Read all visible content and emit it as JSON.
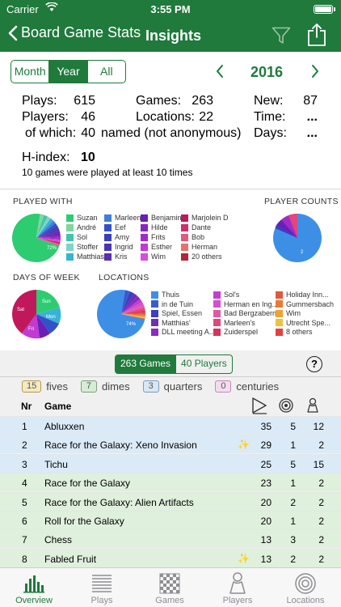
{
  "status": {
    "carrier": "Carrier",
    "time": "3:55 PM"
  },
  "nav": {
    "back_label": "Board Game Stats",
    "title": "Insights"
  },
  "period": {
    "options": [
      "Month",
      "Year",
      "All"
    ],
    "selected": "Year",
    "year": "2016"
  },
  "stats": {
    "plays_label": "Plays:",
    "plays": "615",
    "games_label": "Games:",
    "games": "263",
    "new_label": "New:",
    "new": "87",
    "players_label": "Players:",
    "players": "46",
    "locations_label": "Locations:",
    "locations": "22",
    "time_label": "Time:",
    "time": "...",
    "of_which_label": "of which:",
    "named": "40",
    "named_label": "named (not anonymous)",
    "days_label": "Days:",
    "days": "...",
    "hindex_label": "H-index:",
    "hindex": "10",
    "note": "10 games were played at least 10 times"
  },
  "charts": {
    "played_with": {
      "title": "PLAYED WITH",
      "legend": [
        {
          "label": "Suzan",
          "color": "#2ecc71"
        },
        {
          "label": "André",
          "color": "#7ed6a0"
        },
        {
          "label": "Sol",
          "color": "#40c4aa"
        },
        {
          "label": "Stoffer",
          "color": "#7fd3c8"
        },
        {
          "label": "Matthias",
          "color": "#38b3d6"
        },
        {
          "label": "Marleen",
          "color": "#3f7fd9"
        },
        {
          "label": "Eef",
          "color": "#3352c9"
        },
        {
          "label": "Amy",
          "color": "#3a3fbb"
        },
        {
          "label": "Ingrid",
          "color": "#4b34b5"
        },
        {
          "label": "Kris",
          "color": "#5a2fb0"
        },
        {
          "label": "Benjamin",
          "color": "#6a1fb7"
        },
        {
          "label": "Hilde",
          "color": "#8a24c2"
        },
        {
          "label": "Frits",
          "color": "#a22bc7"
        },
        {
          "label": "Esther",
          "color": "#c13ad1"
        },
        {
          "label": "Wim",
          "color": "#d74fd8"
        },
        {
          "label": "Marjolein D",
          "color": "#c1185b"
        },
        {
          "label": "Dante",
          "color": "#d12f6a"
        },
        {
          "label": "Bob",
          "color": "#e05a7e"
        },
        {
          "label": "Herman",
          "color": "#e3736f"
        },
        {
          "label": "20 others",
          "color": "#b0283c"
        }
      ],
      "pie_label": "72%"
    },
    "player_counts": {
      "title": "PLAYER COUNTS",
      "pie_label": "2"
    },
    "days_of_week": {
      "title": "DAYS OF WEEK",
      "labels": [
        "Sat",
        "Sun",
        "Mon",
        "Fri"
      ]
    },
    "locations": {
      "title": "LOCATIONS",
      "legend": [
        {
          "label": "Thuis",
          "color": "#3d8fe6"
        },
        {
          "label": "in de Tuin",
          "color": "#3a5bd0"
        },
        {
          "label": "Spiel, Essen",
          "color": "#3c3fbf"
        },
        {
          "label": "Matthias'",
          "color": "#6b2fb8"
        },
        {
          "label": "DLL meeting A...",
          "color": "#8a2ac1"
        },
        {
          "label": "Sol's",
          "color": "#c23ecf"
        },
        {
          "label": "Herman en Ing...",
          "color": "#d44fd3"
        },
        {
          "label": "Bad Bergzabern",
          "color": "#e05aa2"
        },
        {
          "label": "Marleen's",
          "color": "#e3467a"
        },
        {
          "label": "Zuiderspel",
          "color": "#d8325a"
        },
        {
          "label": "Holiday Inn...",
          "color": "#e2583e"
        },
        {
          "label": "Gummersbach",
          "color": "#ea7b35"
        },
        {
          "label": "Wim",
          "color": "#f0a133"
        },
        {
          "label": "Utrecht Spe...",
          "color": "#f0c23a"
        },
        {
          "label": "8 others",
          "color": "#e44040"
        }
      ],
      "pie_label": "74%"
    }
  },
  "list": {
    "tabs": [
      "263 Games",
      "40 Players"
    ],
    "help": "?",
    "badges": [
      {
        "count": "15",
        "label": "fives"
      },
      {
        "count": "7",
        "label": "dimes"
      },
      {
        "count": "3",
        "label": "quarters"
      },
      {
        "count": "0",
        "label": "centuries"
      }
    ],
    "header": {
      "nr": "Nr",
      "game": "Game"
    },
    "rows": [
      {
        "nr": "1",
        "name": "Abluxxen",
        "new": false,
        "a": "35",
        "b": "5",
        "c": "12",
        "tone": "blue"
      },
      {
        "nr": "2",
        "name": "Race for the Galaxy: Xeno Invasion",
        "new": true,
        "a": "29",
        "b": "1",
        "c": "2",
        "tone": "blue"
      },
      {
        "nr": "3",
        "name": "Tichu",
        "new": false,
        "a": "25",
        "b": "5",
        "c": "15",
        "tone": "blue"
      },
      {
        "nr": "4",
        "name": "Race for the Galaxy",
        "new": false,
        "a": "23",
        "b": "1",
        "c": "2",
        "tone": "green"
      },
      {
        "nr": "5",
        "name": "Race for the Galaxy: Alien Artifacts",
        "new": false,
        "a": "20",
        "b": "2",
        "c": "2",
        "tone": "green"
      },
      {
        "nr": "6",
        "name": "Roll for the Galaxy",
        "new": false,
        "a": "20",
        "b": "1",
        "c": "2",
        "tone": "green"
      },
      {
        "nr": "7",
        "name": "Chess",
        "new": false,
        "a": "13",
        "b": "3",
        "c": "2",
        "tone": "green"
      },
      {
        "nr": "8",
        "name": "Fabled Fruit",
        "new": true,
        "a": "13",
        "b": "2",
        "c": "2",
        "tone": "green"
      }
    ]
  },
  "tabbar": [
    {
      "label": "Overview",
      "icon": "bar-chart-icon",
      "active": true
    },
    {
      "label": "Plays",
      "icon": "list-icon",
      "active": false
    },
    {
      "label": "Games",
      "icon": "chessboard-icon",
      "active": false
    },
    {
      "label": "Players",
      "icon": "pawn-icon",
      "active": false
    },
    {
      "label": "Locations",
      "icon": "target-icon",
      "active": false
    }
  ],
  "colors": {
    "accent": "#1f7a3c",
    "row_blue": "#dbeaf7",
    "row_green": "#dff0dd"
  }
}
